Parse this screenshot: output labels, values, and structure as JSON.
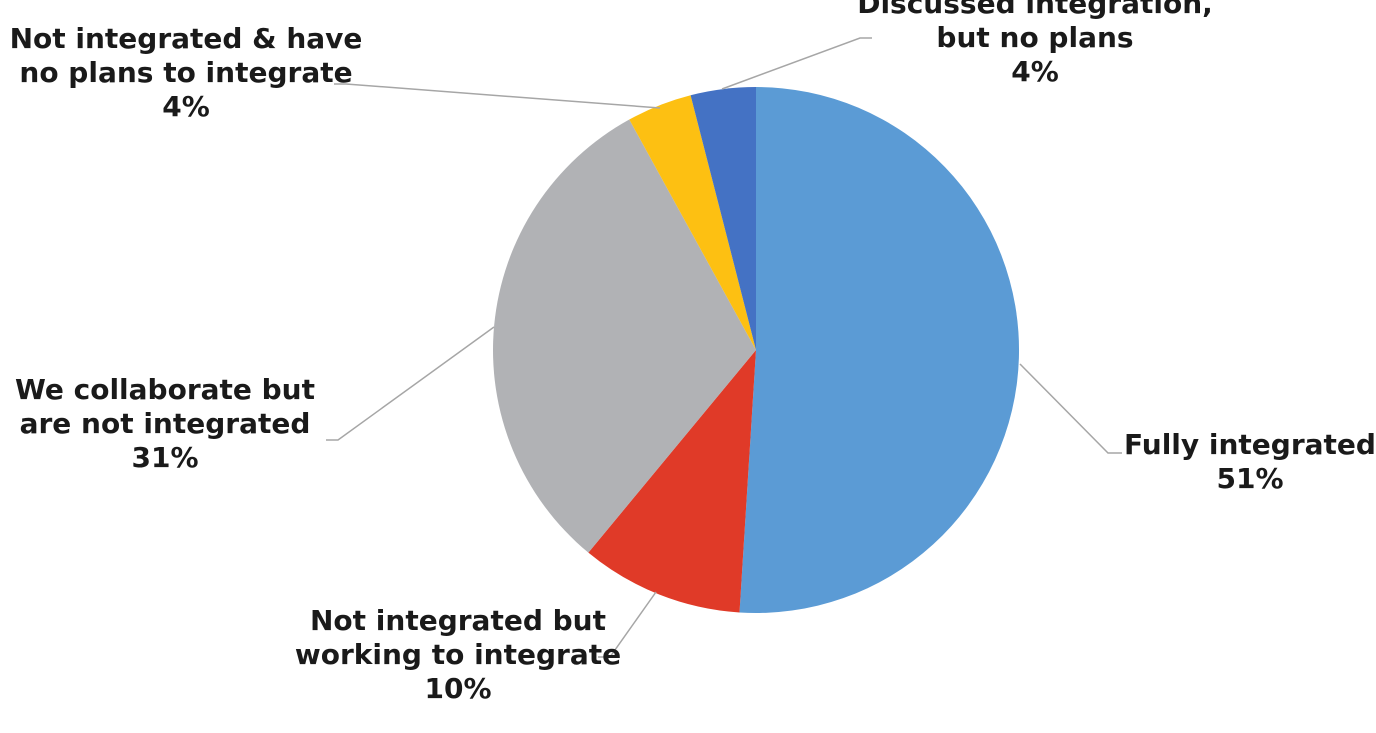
{
  "chart_data": {
    "type": "pie",
    "title": "",
    "start_angle_deg": 0,
    "direction": "clockwise",
    "slices": [
      {
        "label_lines": [
          "Fully integrated"
        ],
        "value_label": "51%",
        "value": 51,
        "color": "#5B9BD5"
      },
      {
        "label_lines": [
          "Not integrated but",
          "working to integrate"
        ],
        "value_label": "10%",
        "value": 10,
        "color": "#E03A28"
      },
      {
        "label_lines": [
          "We collaborate but",
          "are not integrated"
        ],
        "value_label": "31%",
        "value": 31,
        "color": "#B1B2B5"
      },
      {
        "label_lines": [
          "Not integrated & have",
          "no plans to integrate"
        ],
        "value_label": "4%",
        "value": 4,
        "color": "#FDC012"
      },
      {
        "label_lines": [
          "Discussed integration,",
          "but no plans"
        ],
        "value_label": "4%",
        "value": 4,
        "color": "#4472C4"
      }
    ],
    "leader_line_color": "#A6A6A6"
  }
}
